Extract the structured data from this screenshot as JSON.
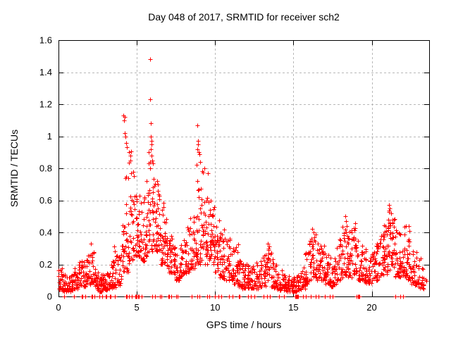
{
  "chart_data": {
    "type": "scatter",
    "title": "Day 048 of 2017, SRMTID for receiver sch2",
    "xlabel": "GPS time / hours",
    "ylabel": "SRMTID / TECUs",
    "xlim": [
      0,
      23.666
    ],
    "ylim": [
      0,
      1.6
    ],
    "xticks": [
      0,
      5,
      10,
      15,
      20
    ],
    "xtick_labels": [
      "0",
      "5",
      "10",
      "15",
      "20"
    ],
    "yticks": [
      0,
      0.2,
      0.4,
      0.6,
      0.8,
      1,
      1.2,
      1.4,
      1.6
    ],
    "ytick_labels": [
      "0",
      "0.2",
      "0.4",
      "0.6",
      "0.8",
      "1",
      "1.2",
      "1.4",
      "1.6"
    ],
    "grid": true,
    "legend": "none",
    "marker": {
      "shape": "plus",
      "color": "#ff0000",
      "size": 7
    },
    "colors": {
      "marker": "#ff0000",
      "grid": "#b8b8b8",
      "axis": "#000000",
      "text": "#000000",
      "background": "#ffffff"
    },
    "series": [
      {
        "name": "SRMTID",
        "representation": "binned_envelope",
        "bin_format": "[hour_start, point_count, y_min_TECUs, y_max_TECUs]",
        "bin_width_hours": 0.25,
        "bins": [
          [
            0.0,
            20,
            0.04,
            0.22
          ],
          [
            0.25,
            22,
            0.03,
            0.15
          ],
          [
            0.5,
            22,
            0.03,
            0.13
          ],
          [
            0.75,
            20,
            0.04,
            0.15
          ],
          [
            1.0,
            20,
            0.05,
            0.18
          ],
          [
            1.25,
            20,
            0.06,
            0.22
          ],
          [
            1.5,
            20,
            0.06,
            0.25
          ],
          [
            1.75,
            22,
            0.08,
            0.3
          ],
          [
            2.0,
            20,
            0.07,
            0.33
          ],
          [
            2.25,
            20,
            0.04,
            0.18
          ],
          [
            2.5,
            20,
            0.03,
            0.15
          ],
          [
            2.75,
            20,
            0.04,
            0.16
          ],
          [
            3.0,
            20,
            0.04,
            0.15
          ],
          [
            3.25,
            20,
            0.05,
            0.22
          ],
          [
            3.5,
            18,
            0.05,
            0.28
          ],
          [
            3.75,
            18,
            0.06,
            0.25
          ],
          [
            4.0,
            20,
            0.1,
            0.45
          ],
          [
            4.25,
            22,
            0.15,
            0.82
          ],
          [
            4.5,
            22,
            0.2,
            0.92
          ],
          [
            4.75,
            22,
            0.25,
            0.85
          ],
          [
            5.0,
            22,
            0.25,
            0.7
          ],
          [
            5.25,
            22,
            0.22,
            0.62
          ],
          [
            5.5,
            22,
            0.25,
            0.75
          ],
          [
            5.75,
            24,
            0.28,
            0.95
          ],
          [
            6.0,
            24,
            0.28,
            0.75
          ],
          [
            6.25,
            24,
            0.28,
            0.7
          ],
          [
            6.5,
            22,
            0.2,
            0.6
          ],
          [
            6.75,
            22,
            0.18,
            0.5
          ],
          [
            7.0,
            22,
            0.15,
            0.42
          ],
          [
            7.25,
            20,
            0.12,
            0.35
          ],
          [
            7.5,
            20,
            0.1,
            0.3
          ],
          [
            7.75,
            20,
            0.12,
            0.35
          ],
          [
            8.0,
            20,
            0.14,
            0.45
          ],
          [
            8.25,
            20,
            0.15,
            0.5
          ],
          [
            8.5,
            20,
            0.17,
            0.55
          ],
          [
            8.75,
            22,
            0.2,
            0.78
          ],
          [
            9.0,
            22,
            0.2,
            0.8
          ],
          [
            9.25,
            22,
            0.2,
            0.65
          ],
          [
            9.5,
            22,
            0.22,
            0.65
          ],
          [
            9.75,
            22,
            0.2,
            0.6
          ],
          [
            10.0,
            22,
            0.15,
            0.5
          ],
          [
            10.25,
            22,
            0.12,
            0.45
          ],
          [
            10.5,
            20,
            0.1,
            0.42
          ],
          [
            10.75,
            20,
            0.1,
            0.36
          ],
          [
            11.0,
            20,
            0.08,
            0.32
          ],
          [
            11.25,
            20,
            0.08,
            0.33
          ],
          [
            11.5,
            20,
            0.06,
            0.25
          ],
          [
            11.75,
            20,
            0.05,
            0.22
          ],
          [
            12.0,
            20,
            0.05,
            0.2
          ],
          [
            12.25,
            18,
            0.05,
            0.2
          ],
          [
            12.5,
            18,
            0.05,
            0.25
          ],
          [
            12.75,
            18,
            0.06,
            0.25
          ],
          [
            13.0,
            18,
            0.06,
            0.28
          ],
          [
            13.25,
            18,
            0.08,
            0.34
          ],
          [
            13.5,
            18,
            0.06,
            0.3
          ],
          [
            13.75,
            18,
            0.05,
            0.22
          ],
          [
            14.0,
            18,
            0.04,
            0.18
          ],
          [
            14.25,
            18,
            0.04,
            0.15
          ],
          [
            14.5,
            18,
            0.03,
            0.13
          ],
          [
            14.75,
            18,
            0.03,
            0.12
          ],
          [
            15.0,
            16,
            0.03,
            0.13
          ],
          [
            15.25,
            16,
            0.04,
            0.15
          ],
          [
            15.5,
            18,
            0.05,
            0.2
          ],
          [
            15.75,
            18,
            0.08,
            0.28
          ],
          [
            16.0,
            20,
            0.1,
            0.38
          ],
          [
            16.25,
            20,
            0.12,
            0.42
          ],
          [
            16.5,
            20,
            0.1,
            0.35
          ],
          [
            16.75,
            20,
            0.1,
            0.32
          ],
          [
            17.0,
            20,
            0.08,
            0.3
          ],
          [
            17.25,
            20,
            0.06,
            0.25
          ],
          [
            17.5,
            20,
            0.06,
            0.25
          ],
          [
            17.75,
            20,
            0.1,
            0.38
          ],
          [
            18.0,
            20,
            0.12,
            0.45
          ],
          [
            18.25,
            22,
            0.12,
            0.5
          ],
          [
            18.5,
            22,
            0.12,
            0.45
          ],
          [
            18.75,
            22,
            0.14,
            0.46
          ],
          [
            19.0,
            20,
            0.1,
            0.35
          ],
          [
            19.25,
            20,
            0.1,
            0.32
          ],
          [
            19.5,
            20,
            0.08,
            0.3
          ],
          [
            19.75,
            20,
            0.08,
            0.28
          ],
          [
            20.0,
            20,
            0.1,
            0.3
          ],
          [
            20.25,
            20,
            0.1,
            0.35
          ],
          [
            20.5,
            20,
            0.12,
            0.4
          ],
          [
            20.75,
            22,
            0.14,
            0.45
          ],
          [
            21.0,
            22,
            0.15,
            0.55
          ],
          [
            21.25,
            22,
            0.15,
            0.5
          ],
          [
            21.5,
            22,
            0.12,
            0.45
          ],
          [
            21.75,
            22,
            0.12,
            0.42
          ],
          [
            22.0,
            22,
            0.12,
            0.45
          ],
          [
            22.25,
            20,
            0.1,
            0.38
          ],
          [
            22.5,
            20,
            0.08,
            0.3
          ],
          [
            22.75,
            18,
            0.06,
            0.28
          ],
          [
            23.0,
            14,
            0.05,
            0.25
          ],
          [
            23.25,
            8,
            0.05,
            0.18
          ]
        ],
        "notable_points": [
          [
            2.05,
            0.33
          ],
          [
            3.55,
            0.31
          ],
          [
            3.58,
            0.28
          ],
          [
            4.15,
            1.13
          ],
          [
            4.19,
            1.1
          ],
          [
            4.23,
            1.12
          ],
          [
            4.22,
            1.02
          ],
          [
            4.27,
            1.0
          ],
          [
            4.31,
            0.96
          ],
          [
            4.36,
            0.93
          ],
          [
            4.52,
            0.9
          ],
          [
            4.57,
            0.88
          ],
          [
            4.6,
            0.85
          ],
          [
            5.85,
            1.48
          ],
          [
            5.87,
            1.23
          ],
          [
            5.9,
            1.08
          ],
          [
            5.88,
            1.0
          ],
          [
            5.92,
            0.97
          ],
          [
            5.95,
            0.95
          ],
          [
            5.91,
            0.92
          ],
          [
            5.94,
            0.88
          ],
          [
            5.98,
            0.85
          ],
          [
            6.02,
            0.83
          ],
          [
            6.3,
            0.72
          ],
          [
            6.36,
            0.7
          ],
          [
            6.33,
            0.66
          ],
          [
            6.42,
            0.63
          ],
          [
            8.85,
            1.07
          ],
          [
            8.9,
            0.97
          ],
          [
            8.93,
            0.95
          ],
          [
            8.88,
            0.92
          ],
          [
            8.96,
            0.9
          ],
          [
            9.02,
            0.89
          ],
          [
            9.06,
            0.84
          ],
          [
            8.81,
            0.82
          ],
          [
            9.32,
            0.8
          ],
          [
            9.52,
            0.77
          ],
          [
            9.85,
            0.51
          ],
          [
            13.35,
            0.33
          ],
          [
            13.42,
            0.3
          ],
          [
            16.2,
            0.42
          ],
          [
            16.27,
            0.4
          ],
          [
            18.3,
            0.5
          ],
          [
            18.36,
            0.47
          ],
          [
            18.42,
            0.44
          ],
          [
            21.1,
            0.57
          ],
          [
            21.16,
            0.55
          ],
          [
            21.22,
            0.52
          ],
          [
            21.06,
            0.48
          ],
          [
            21.32,
            0.46
          ],
          [
            22.35,
            0.44
          ],
          [
            22.42,
            0.41
          ]
        ],
        "zero_value_hours": [
          0.35,
          1.0,
          1.5,
          1.55,
          1.7,
          2.1,
          2.15,
          2.3,
          2.6,
          2.8,
          3.0,
          3.05,
          3.3,
          3.35,
          3.6,
          4.3,
          4.35,
          4.5,
          4.7,
          4.9,
          4.95,
          5.0,
          5.1,
          5.15,
          5.3,
          6.0,
          6.15,
          6.5,
          6.55,
          7.0,
          7.05,
          7.2,
          7.5,
          7.6,
          8.5,
          8.85,
          9.0,
          9.5,
          9.65,
          10.0,
          10.2,
          10.4,
          10.9,
          11.1,
          11.5,
          11.55,
          12.1,
          12.3,
          12.5,
          13.1,
          13.3,
          13.5,
          14.1,
          14.4,
          15.1,
          15.15,
          15.2,
          15.25,
          15.3,
          15.6,
          15.8,
          16.1,
          16.4,
          16.6,
          17.0,
          17.3,
          17.5,
          19.05,
          19.1,
          19.15,
          19.2,
          21.5,
          21.8,
          22.0
        ]
      }
    ],
    "render_hints": {
      "seed": 48,
      "y_skew": 1.6,
      "grid_style": "dashed"
    }
  }
}
